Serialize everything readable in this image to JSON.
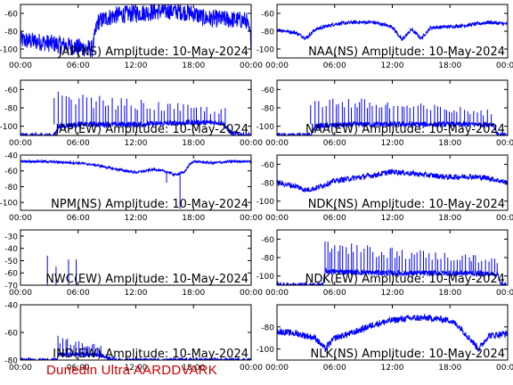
{
  "footer": "Dunedin Ultra AARDDVARK",
  "colors": {
    "trace": "#0000ff",
    "axis": "#000000",
    "title": "#000000",
    "footer": "#d00000"
  },
  "chart_data": [
    {
      "type": "line",
      "title": "JAP(NS) Amplitude: 10-May-2024",
      "xticks": [
        "00:00",
        "06:00",
        "12:00",
        "18:00",
        "00:00"
      ],
      "xlim": [
        0,
        24
      ],
      "ylim": [
        -110,
        -50
      ],
      "yticks": [
        -100,
        -80,
        -60
      ],
      "series": [
        {
          "x": [
            0,
            2,
            4,
            6,
            7.5,
            8,
            9,
            10,
            12,
            14,
            16,
            18,
            19,
            20,
            22,
            23.5,
            24
          ],
          "y": [
            -90,
            -92,
            -95,
            -98,
            -100,
            -70,
            -65,
            -62,
            -60,
            -58,
            -57,
            -60,
            -65,
            -66,
            -67,
            -68,
            -90
          ],
          "noise": 10
        }
      ]
    },
    {
      "type": "line",
      "title": "NAA(NS) Amplitude: 10-May-2024",
      "xticks": [
        "00:00",
        "06:00",
        "12:00",
        "18:00",
        "00:00"
      ],
      "xlim": [
        0,
        24
      ],
      "ylim": [
        -110,
        -50
      ],
      "yticks": [
        -100,
        -80,
        -60
      ],
      "series": [
        {
          "x": [
            0,
            2,
            3,
            4,
            6,
            8,
            10,
            12,
            13,
            14,
            15,
            16,
            18,
            20,
            22,
            24
          ],
          "y": [
            -78,
            -82,
            -88,
            -78,
            -72,
            -70,
            -70,
            -75,
            -90,
            -78,
            -88,
            -76,
            -75,
            -73,
            -70,
            -72
          ],
          "noise": 2
        }
      ]
    },
    {
      "type": "line",
      "title": "JAP(EW) Amplitude: 10-May-2024",
      "xticks": [
        "00:00",
        "06:00",
        "12:00",
        "18:00",
        "00:00"
      ],
      "xlim": [
        0,
        24
      ],
      "ylim": [
        -110,
        -50
      ],
      "yticks": [
        -100,
        -80,
        -60
      ],
      "series": [
        {
          "x": [
            0,
            3.5,
            4,
            6,
            9,
            12,
            15,
            18,
            21,
            22,
            24
          ],
          "y": [
            -110,
            -110,
            -100,
            -98,
            -98,
            -98,
            -97,
            -96,
            -96,
            -108,
            -110
          ],
          "noise": 3,
          "spikes": {
            "from": 3.5,
            "to": 21.5,
            "step": 0.35,
            "base": -98,
            "max": -62,
            "min": -80
          }
        }
      ]
    },
    {
      "type": "line",
      "title": "NAA(EW) Amplitude: 10-May-2024",
      "xticks": [
        "00:00",
        "06:00",
        "12:00",
        "18:00",
        "00:00"
      ],
      "xlim": [
        0,
        24
      ],
      "ylim": [
        -110,
        -50
      ],
      "yticks": [
        -100,
        -80,
        -60
      ],
      "series": [
        {
          "x": [
            0,
            3.5,
            4,
            8,
            12,
            16,
            20,
            22.5,
            23,
            24
          ],
          "y": [
            -110,
            -110,
            -100,
            -98,
            -98,
            -98,
            -98,
            -98,
            -110,
            -110
          ],
          "noise": 3,
          "spikes": {
            "from": 3.5,
            "to": 22.5,
            "step": 0.33,
            "base": -98,
            "max": -65,
            "min": -80
          }
        }
      ]
    },
    {
      "type": "line",
      "title": "NPM(NS) Amplitude: 10-May-2024",
      "xticks": [
        "00:00",
        "06:00",
        "12:00",
        "18:00",
        "00:00"
      ],
      "xlim": [
        0,
        24
      ],
      "ylim": [
        -110,
        -40
      ],
      "yticks": [
        -100,
        -80,
        -60,
        -40
      ],
      "series": [
        {
          "x": [
            0,
            2,
            4,
            6,
            8,
            10,
            12,
            14,
            15.5,
            16,
            17,
            17.6,
            18,
            20,
            22,
            24
          ],
          "y": [
            -48,
            -48,
            -49,
            -50,
            -53,
            -58,
            -62,
            -58,
            -62,
            -65,
            -62,
            -52,
            -48,
            -50,
            -48,
            -48
          ],
          "noise": 1.5,
          "dips": [
            {
              "x": 15.2,
              "y": -75
            },
            {
              "x": 16.6,
              "y": -108
            }
          ]
        }
      ]
    },
    {
      "type": "line",
      "title": "NDK(NS) Amplitude: 10-May-2024",
      "xticks": [
        "00:00",
        "06:00",
        "12:00",
        "18:00",
        "00:00"
      ],
      "xlim": [
        0,
        24
      ],
      "ylim": [
        -110,
        -50
      ],
      "yticks": [
        -100,
        -80,
        -60
      ],
      "series": [
        {
          "x": [
            0,
            2,
            3,
            4,
            6,
            8,
            10,
            12,
            14,
            16,
            18,
            20,
            22,
            24
          ],
          "y": [
            -80,
            -84,
            -88,
            -86,
            -78,
            -75,
            -72,
            -68,
            -70,
            -72,
            -74,
            -73,
            -75,
            -80
          ],
          "noise": 3
        }
      ]
    },
    {
      "type": "line",
      "title": "NWC(EW) Amplitude: 10-May-2024",
      "xticks": [
        "00:00",
        "06:00",
        "12:00",
        "18:00",
        "00:00"
      ],
      "xlim": [
        0,
        24
      ],
      "ylim": [
        -70,
        -25
      ],
      "yticks": [
        -70,
        -60,
        -50,
        -40,
        -30
      ],
      "series": [
        {
          "x": [
            0,
            24
          ],
          "y": [
            -70,
            -70
          ],
          "noise": 0,
          "sticks": [
            {
              "x": 2.8,
              "y": -46
            },
            {
              "x": 3.7,
              "y": -55
            },
            {
              "x": 5,
              "y": -49
            },
            {
              "x": 5.8,
              "y": -49
            }
          ]
        }
      ]
    },
    {
      "type": "line",
      "title": "NDK(EW) Amplitude: 10-May-2024",
      "xticks": [
        "00:00",
        "06:00",
        "12:00",
        "18:00",
        "00:00"
      ],
      "xlim": [
        0,
        24
      ],
      "ylim": [
        -110,
        -50
      ],
      "yticks": [
        -100,
        -80,
        -60
      ],
      "series": [
        {
          "x": [
            0,
            4.8,
            5,
            8,
            12,
            16,
            20,
            23,
            23.3,
            24
          ],
          "y": [
            -110,
            -110,
            -95,
            -96,
            -97,
            -97,
            -97,
            -98,
            -110,
            -110
          ],
          "noise": 3,
          "spikes": {
            "from": 5,
            "to": 23,
            "step": 0.3,
            "base": -96,
            "max": -62,
            "min": -80
          }
        }
      ]
    },
    {
      "type": "line",
      "title": "IND(EW) Amplitude: 10-May-2024",
      "xticks": [
        "00:00",
        "06:00",
        "12:00",
        "18:00",
        "00:00"
      ],
      "xlim": [
        0,
        24
      ],
      "ylim": [
        -80,
        -40
      ],
      "yticks": [
        -80,
        -60,
        -40
      ],
      "series": [
        {
          "x": [
            0,
            3.8,
            4,
            6,
            8,
            10,
            24
          ],
          "y": [
            -80,
            -80,
            -76,
            -76,
            -76,
            -80,
            -80
          ],
          "noise": 1.5,
          "spikes": {
            "from": 3.9,
            "to": 8.5,
            "step": 0.25,
            "base": -76,
            "max": -62,
            "min": -70
          }
        }
      ]
    },
    {
      "type": "line",
      "title": "NLK(NS) Amplitude: 10-May-2024",
      "xticks": [
        "00:00",
        "06:00",
        "12:00",
        "18:00",
        "00:00"
      ],
      "xlim": [
        0,
        24
      ],
      "ylim": [
        -110,
        -60
      ],
      "yticks": [
        -100,
        -80
      ],
      "series": [
        {
          "x": [
            0,
            2,
            4,
            5,
            6,
            8,
            10,
            12,
            14,
            16,
            18,
            19,
            20,
            21,
            22,
            24
          ],
          "y": [
            -84,
            -86,
            -90,
            -100,
            -90,
            -85,
            -78,
            -74,
            -72,
            -72,
            -74,
            -80,
            -90,
            -100,
            -88,
            -86
          ],
          "noise": 3
        }
      ]
    }
  ]
}
